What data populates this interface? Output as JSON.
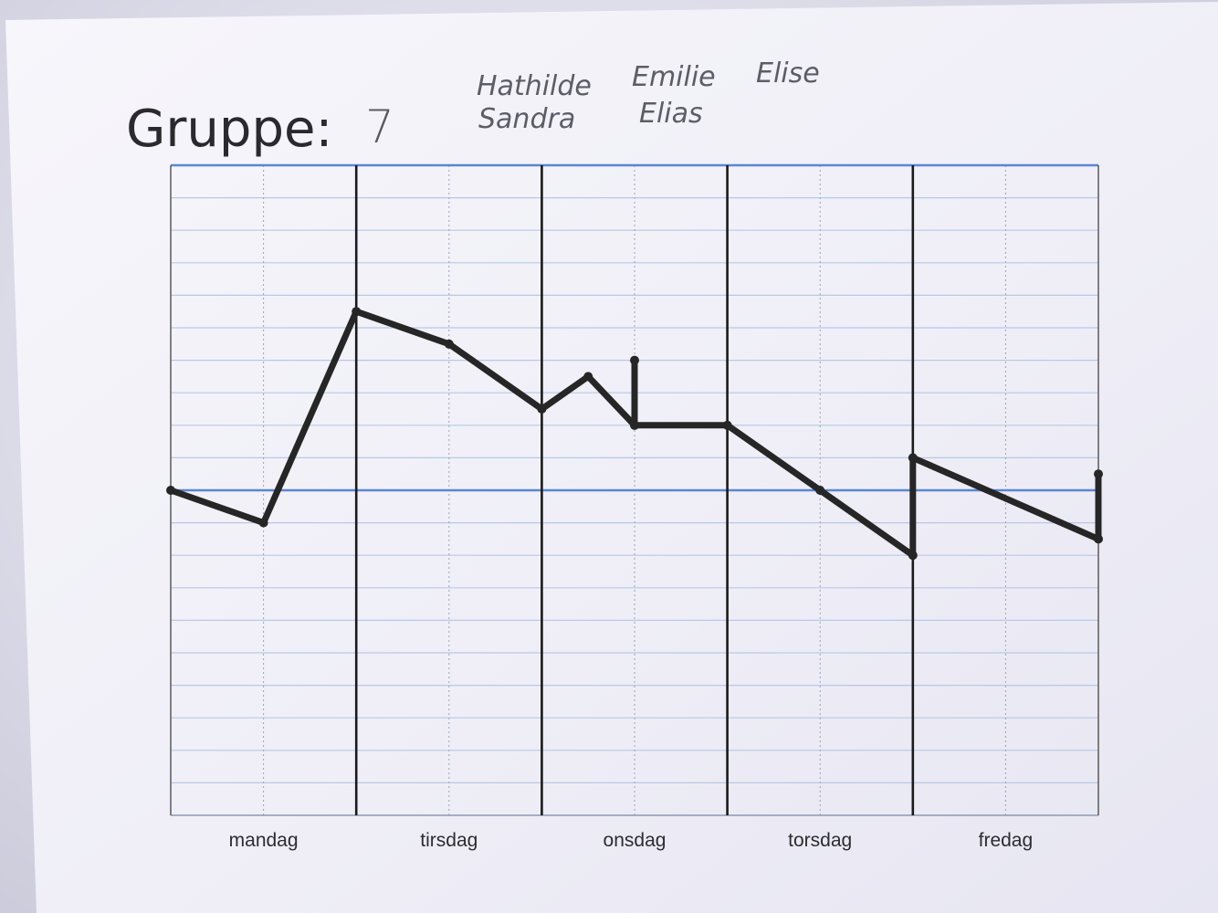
{
  "sheet": {
    "heading": "Gruppe:",
    "group_number": "7",
    "member_names": [
      "Hathilde",
      "Emilie",
      "Elise",
      "Sandra",
      "Elias"
    ]
  },
  "chart_data": {
    "type": "line",
    "title": "",
    "xlabel": "",
    "ylabel": "",
    "categories": [
      "mandag",
      "tirsdag",
      "onsdag",
      "torsdag",
      "fredag"
    ],
    "x_range": [
      0,
      5
    ],
    "y_range": [
      -10,
      10
    ],
    "baseline": 0,
    "grid": true,
    "series": [
      {
        "values": [
          {
            "x": 0.0,
            "y": 0.0
          },
          {
            "x": 0.5,
            "y": -1.0
          },
          {
            "x": 1.0,
            "y": 5.5
          },
          {
            "x": 1.5,
            "y": 4.5
          },
          {
            "x": 2.0,
            "y": 2.5
          },
          {
            "x": 2.25,
            "y": 3.5
          },
          {
            "x": 2.5,
            "y": 2.0
          },
          {
            "x": 2.5,
            "y": 4.0
          },
          {
            "x": 2.5,
            "y": 2.0
          },
          {
            "x": 3.0,
            "y": 2.0
          },
          {
            "x": 3.5,
            "y": 0.0
          },
          {
            "x": 4.0,
            "y": -2.0
          },
          {
            "x": 4.0,
            "y": 1.0
          },
          {
            "x": 5.0,
            "y": -1.5
          },
          {
            "x": 5.0,
            "y": 0.5
          }
        ]
      }
    ]
  },
  "colors": {
    "paper": "#f4f3fa",
    "grid_blue": "#5b86d2",
    "minor_grid": "#b9c8e6",
    "day_divider": "#1a1a1a",
    "ink": "#262626"
  }
}
